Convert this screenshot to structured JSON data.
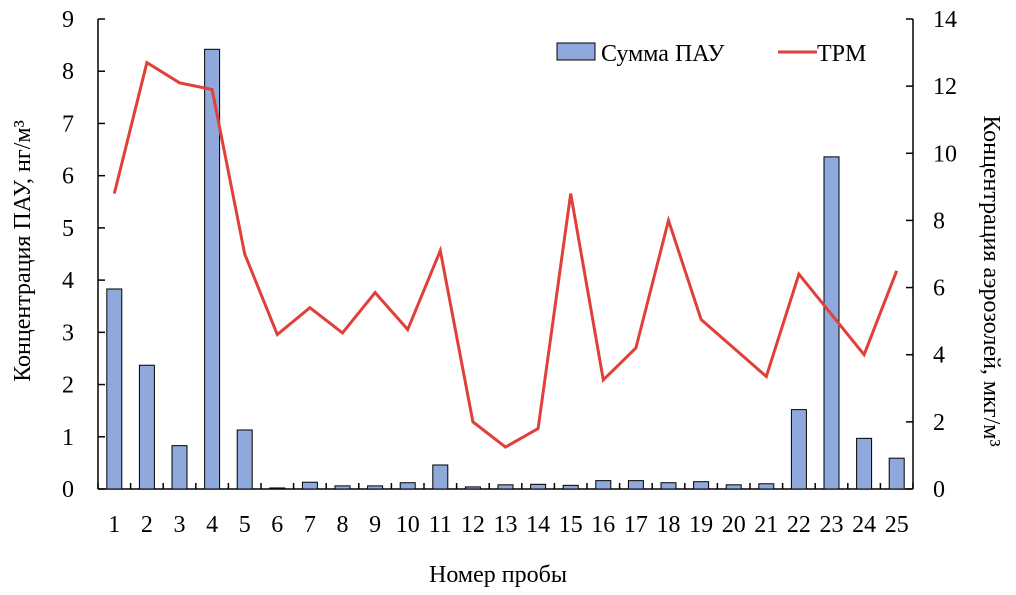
{
  "chart_data": {
    "type": "bar+line",
    "categories": [
      "1",
      "2",
      "3",
      "4",
      "5",
      "6",
      "7",
      "8",
      "9",
      "10",
      "11",
      "12",
      "13",
      "14",
      "15",
      "16",
      "17",
      "18",
      "19",
      "20",
      "21",
      "22",
      "23",
      "24",
      "25"
    ],
    "series": [
      {
        "name": "Сумма ПАУ",
        "type": "bar",
        "axis": "left",
        "color": "#8fa9dc",
        "values": [
          3.83,
          2.37,
          0.83,
          8.42,
          1.13,
          0.02,
          0.13,
          0.06,
          0.06,
          0.12,
          0.46,
          0.04,
          0.08,
          0.09,
          0.07,
          0.16,
          0.16,
          0.12,
          0.14,
          0.08,
          0.1,
          1.52,
          6.36,
          0.97,
          0.59
        ]
      },
      {
        "name": "TPM",
        "type": "line",
        "axis": "right",
        "color": "#e0403a",
        "values": [
          8.8,
          12.7,
          12.1,
          11.9,
          7.0,
          4.6,
          5.4,
          4.65,
          5.85,
          4.75,
          7.1,
          2.0,
          1.25,
          1.8,
          8.8,
          3.25,
          4.2,
          8.0,
          5.05,
          4.2,
          3.35,
          6.4,
          5.2,
          4.0,
          6.5
        ]
      }
    ],
    "xlabel": "Номер пробы",
    "ylabel_left": "Концентрация ПАУ, нг/м³",
    "ylabel_right": "Концентрация аэрозолей, мкг/м³",
    "ylim_left": [
      0,
      9
    ],
    "ylim_right": [
      0,
      14
    ],
    "yticks_left": [
      "0",
      "1",
      "2",
      "3",
      "4",
      "5",
      "6",
      "7",
      "8",
      "9"
    ],
    "yticks_right": [
      "0",
      "2",
      "4",
      "6",
      "8",
      "10",
      "12",
      "14"
    ],
    "grid": false,
    "legend_position": "top-right"
  }
}
